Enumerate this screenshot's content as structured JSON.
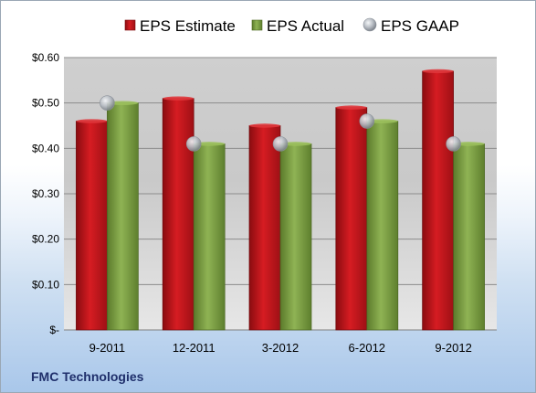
{
  "chart_data": {
    "type": "bar",
    "categories": [
      "9-2011",
      "12-2011",
      "3-2012",
      "6-2012",
      "9-2012"
    ],
    "series": [
      {
        "name": "EPS Estimate",
        "kind": "bar",
        "color": "#c8161d",
        "values": [
          0.46,
          0.51,
          0.45,
          0.49,
          0.57
        ]
      },
      {
        "name": "EPS Actual",
        "kind": "bar",
        "color": "#7fa045",
        "values": [
          0.5,
          0.41,
          0.41,
          0.46,
          0.41
        ]
      },
      {
        "name": "EPS GAAP",
        "kind": "marker",
        "color": "#b4b9c0",
        "values": [
          0.5,
          0.41,
          0.41,
          0.46,
          0.41
        ]
      }
    ],
    "y_ticks": [
      {
        "value": 0.0,
        "label": "$-"
      },
      {
        "value": 0.1,
        "label": "$0.10"
      },
      {
        "value": 0.2,
        "label": "$0.20"
      },
      {
        "value": 0.3,
        "label": "$0.30"
      },
      {
        "value": 0.4,
        "label": "$0.40"
      },
      {
        "value": 0.5,
        "label": "$0.50"
      },
      {
        "value": 0.6,
        "label": "$0.60"
      }
    ],
    "ylim": [
      0,
      0.6
    ],
    "grid": true,
    "legend_position": "top",
    "source_label": "FMC Technologies"
  }
}
